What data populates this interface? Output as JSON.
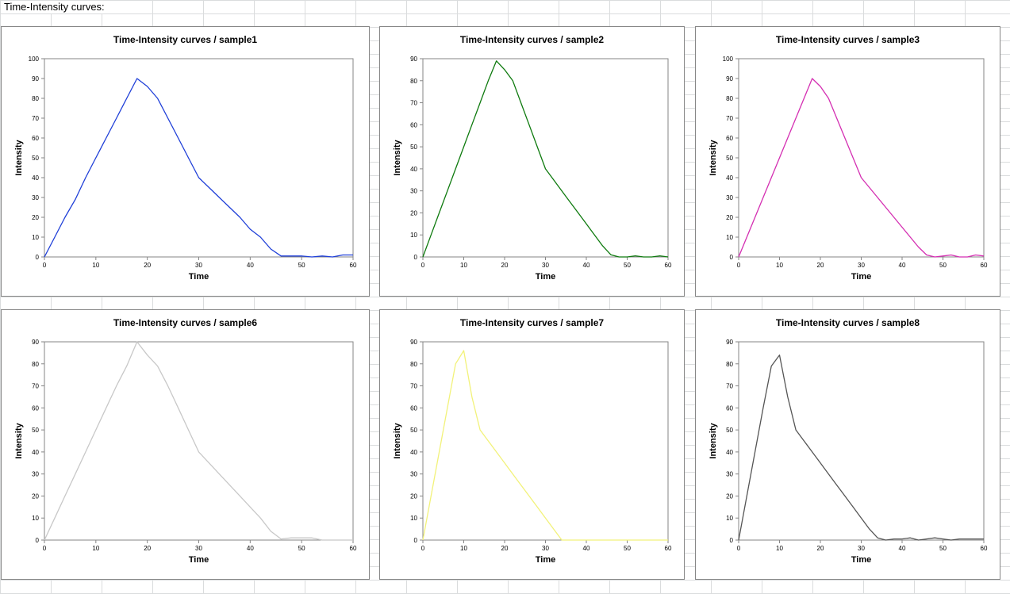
{
  "sheet": {
    "title": "Time-Intensity curves:"
  },
  "chart_data": [
    {
      "type": "line",
      "title": "Time-Intensity curves / sample1",
      "xlabel": "Time",
      "ylabel": "Intensity",
      "xlim": [
        0,
        60
      ],
      "ylim": [
        0,
        100
      ],
      "xticks": [
        0,
        10,
        20,
        30,
        40,
        50,
        60
      ],
      "yticks": [
        0,
        10,
        20,
        30,
        40,
        50,
        60,
        70,
        80,
        90,
        100
      ],
      "color": "#1f3fd8",
      "x": [
        0,
        2,
        4,
        6,
        8,
        10,
        12,
        14,
        16,
        18,
        20,
        22,
        24,
        26,
        28,
        30,
        32,
        34,
        36,
        38,
        40,
        42,
        44,
        46,
        48,
        50,
        52,
        54,
        56,
        58,
        60
      ],
      "y": [
        0,
        10,
        20,
        29,
        40,
        50,
        60,
        70,
        80,
        90,
        86,
        80,
        70,
        60,
        50,
        40,
        35,
        30,
        25,
        20,
        14,
        10,
        4,
        0.5,
        0.5,
        0.5,
        0,
        0.5,
        0,
        1,
        1
      ]
    },
    {
      "type": "line",
      "title": "Time-Intensity curves / sample2",
      "xlabel": "Time",
      "ylabel": "Intensity",
      "xlim": [
        0,
        60
      ],
      "ylim": [
        0,
        90
      ],
      "xticks": [
        0,
        10,
        20,
        30,
        40,
        50,
        60
      ],
      "yticks": [
        0,
        10,
        20,
        30,
        40,
        50,
        60,
        70,
        80,
        90
      ],
      "color": "#0e7a0e",
      "x": [
        0,
        2,
        4,
        6,
        8,
        10,
        12,
        14,
        16,
        18,
        20,
        22,
        24,
        26,
        28,
        30,
        32,
        34,
        36,
        38,
        40,
        42,
        44,
        46,
        48,
        50,
        52,
        54,
        56,
        58,
        60
      ],
      "y": [
        0,
        10,
        20,
        30,
        40,
        50,
        60,
        70,
        80,
        89,
        85,
        80,
        70,
        60,
        50,
        40,
        35,
        30,
        25,
        20,
        15,
        10,
        5,
        1,
        0,
        0,
        0.5,
        0,
        0,
        0.5,
        0
      ]
    },
    {
      "type": "line",
      "title": "Time-Intensity curves / sample3",
      "xlabel": "Time",
      "ylabel": "Intensity",
      "xlim": [
        0,
        60
      ],
      "ylim": [
        0,
        100
      ],
      "xticks": [
        0,
        10,
        20,
        30,
        40,
        50,
        60
      ],
      "yticks": [
        0,
        10,
        20,
        30,
        40,
        50,
        60,
        70,
        80,
        90,
        100
      ],
      "color": "#d42fb2",
      "x": [
        0,
        2,
        4,
        6,
        8,
        10,
        12,
        14,
        16,
        18,
        20,
        22,
        24,
        26,
        28,
        30,
        32,
        34,
        36,
        38,
        40,
        42,
        44,
        46,
        48,
        50,
        52,
        54,
        56,
        58,
        60
      ],
      "y": [
        0,
        10,
        20,
        30,
        40,
        50,
        60,
        70,
        80,
        90,
        86,
        80,
        70,
        60,
        50,
        40,
        35,
        30,
        25,
        20,
        15,
        10,
        5,
        1,
        0,
        0.5,
        1,
        0,
        0,
        1,
        0.5
      ]
    },
    {
      "type": "line",
      "title": "Time-Intensity curves / sample6",
      "xlabel": "Time",
      "ylabel": "Intensity",
      "xlim": [
        0,
        60
      ],
      "ylim": [
        0,
        90
      ],
      "xticks": [
        0,
        10,
        20,
        30,
        40,
        50,
        60
      ],
      "yticks": [
        0,
        10,
        20,
        30,
        40,
        50,
        60,
        70,
        80,
        90
      ],
      "color": "#c8c8c8",
      "x": [
        0,
        2,
        4,
        6,
        8,
        10,
        12,
        14,
        16,
        18,
        20,
        22,
        24,
        26,
        28,
        30,
        32,
        34,
        36,
        38,
        40,
        42,
        44,
        46,
        48,
        50,
        52,
        54,
        56,
        58,
        60
      ],
      "y": [
        0,
        10,
        20,
        30,
        40,
        50,
        60,
        70,
        79,
        90,
        84,
        79,
        70,
        60,
        50,
        40,
        35,
        30,
        25,
        20,
        15,
        10,
        4,
        0.5,
        1,
        1,
        1,
        0,
        0,
        0,
        0
      ]
    },
    {
      "type": "line",
      "title": "Time-Intensity curves / sample7",
      "xlabel": "Time",
      "ylabel": "Intensity",
      "xlim": [
        0,
        60
      ],
      "ylim": [
        0,
        90
      ],
      "xticks": [
        0,
        10,
        20,
        30,
        40,
        50,
        60
      ],
      "yticks": [
        0,
        10,
        20,
        30,
        40,
        50,
        60,
        70,
        80,
        90
      ],
      "color": "#f2f27a",
      "x": [
        0,
        2,
        4,
        6,
        8,
        10,
        12,
        14,
        16,
        18,
        20,
        22,
        24,
        26,
        28,
        30,
        32,
        34,
        36,
        38,
        40,
        42,
        44,
        46,
        48,
        50,
        52,
        54,
        56,
        58,
        60
      ],
      "y": [
        0,
        20,
        40,
        60,
        80,
        86,
        65,
        50,
        45,
        40,
        35,
        30,
        25,
        20,
        15,
        10,
        5,
        0,
        0,
        0,
        0,
        0,
        0,
        0,
        0,
        0,
        0,
        0,
        0,
        0,
        0
      ]
    },
    {
      "type": "line",
      "title": "Time-Intensity curves / sample8",
      "xlabel": "Time",
      "ylabel": "Intensity",
      "xlim": [
        0,
        60
      ],
      "ylim": [
        0,
        90
      ],
      "xticks": [
        0,
        10,
        20,
        30,
        40,
        50,
        60
      ],
      "yticks": [
        0,
        10,
        20,
        30,
        40,
        50,
        60,
        70,
        80,
        90
      ],
      "color": "#555555",
      "x": [
        0,
        2,
        4,
        6,
        8,
        10,
        12,
        14,
        16,
        18,
        20,
        22,
        24,
        26,
        28,
        30,
        32,
        34,
        36,
        38,
        40,
        42,
        44,
        46,
        48,
        50,
        52,
        54,
        56,
        58,
        60
      ],
      "y": [
        0,
        20,
        40,
        60,
        79,
        84,
        65,
        50,
        45,
        40,
        35,
        30,
        25,
        20,
        15,
        10,
        5,
        1,
        0,
        0.5,
        0.5,
        1,
        0,
        0.5,
        1,
        0.5,
        0,
        0.5,
        0.5,
        0.5,
        0.5
      ]
    }
  ]
}
